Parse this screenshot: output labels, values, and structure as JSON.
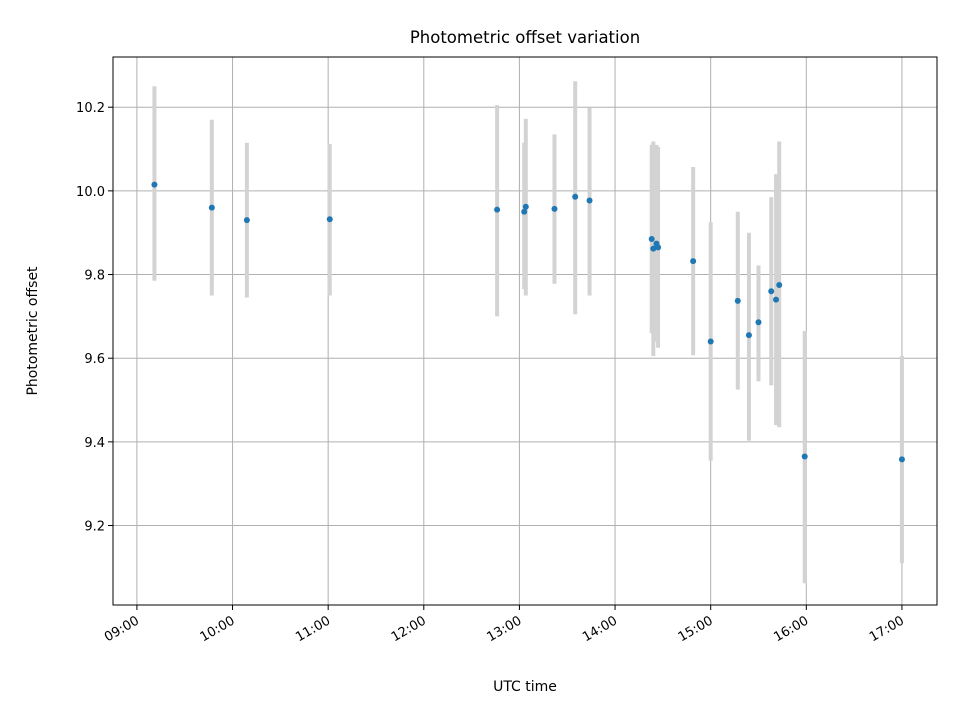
{
  "chart_data": {
    "type": "scatter",
    "title": "Photometric offset variation",
    "xlabel": "UTC time",
    "ylabel": "Photometric offset",
    "grid": true,
    "legend": "none",
    "xlim": [
      "08:45",
      "17:22"
    ],
    "ylim": [
      9.01,
      10.32
    ],
    "x_ticks": [
      "09:00",
      "10:00",
      "11:00",
      "12:00",
      "13:00",
      "14:00",
      "15:00",
      "16:00",
      "17:00"
    ],
    "y_ticks": [
      "9.2",
      "9.4",
      "9.6",
      "9.8",
      "10.0",
      "10.2"
    ],
    "series": [
      {
        "marker_color": "#1f77b4",
        "errorbar_color": "#d3d3d3",
        "points": [
          {
            "x": "09:11",
            "y": 10.015,
            "y_low": 9.785,
            "y_high": 10.25
          },
          {
            "x": "09:47",
            "y": 9.96,
            "y_low": 9.75,
            "y_high": 10.17
          },
          {
            "x": "10:09",
            "y": 9.93,
            "y_low": 9.745,
            "y_high": 10.115
          },
          {
            "x": "11:01",
            "y": 9.932,
            "y_low": 9.75,
            "y_high": 10.112
          },
          {
            "x": "12:46",
            "y": 9.955,
            "y_low": 9.7,
            "y_high": 10.205
          },
          {
            "x": "13:03",
            "y": 9.95,
            "y_low": 9.765,
            "y_high": 10.115
          },
          {
            "x": "13:04",
            "y": 9.962,
            "y_low": 9.75,
            "y_high": 10.172
          },
          {
            "x": "13:22",
            "y": 9.957,
            "y_low": 9.778,
            "y_high": 10.135
          },
          {
            "x": "13:35",
            "y": 9.986,
            "y_low": 9.705,
            "y_high": 10.262
          },
          {
            "x": "13:44",
            "y": 9.977,
            "y_low": 9.75,
            "y_high": 10.198
          },
          {
            "x": "14:23",
            "y": 9.885,
            "y_low": 9.66,
            "y_high": 10.11
          },
          {
            "x": "14:24",
            "y": 9.862,
            "y_low": 9.605,
            "y_high": 10.118
          },
          {
            "x": "14:26",
            "y": 9.874,
            "y_low": 9.64,
            "y_high": 10.11
          },
          {
            "x": "14:27",
            "y": 9.865,
            "y_low": 9.625,
            "y_high": 10.105
          },
          {
            "x": "14:49",
            "y": 9.832,
            "y_low": 9.607,
            "y_high": 10.057
          },
          {
            "x": "15:00",
            "y": 9.64,
            "y_low": 9.355,
            "y_high": 9.925
          },
          {
            "x": "15:17",
            "y": 9.737,
            "y_low": 9.525,
            "y_high": 9.95
          },
          {
            "x": "15:24",
            "y": 9.655,
            "y_low": 9.403,
            "y_high": 9.9
          },
          {
            "x": "15:30",
            "y": 9.686,
            "y_low": 9.545,
            "y_high": 9.822
          },
          {
            "x": "15:38",
            "y": 9.76,
            "y_low": 9.535,
            "y_high": 9.985
          },
          {
            "x": "15:41",
            "y": 9.74,
            "y_low": 9.44,
            "y_high": 10.04
          },
          {
            "x": "15:43",
            "y": 9.775,
            "y_low": 9.435,
            "y_high": 10.118
          },
          {
            "x": "15:59",
            "y": 9.365,
            "y_low": 9.062,
            "y_high": 9.665
          },
          {
            "x": "17:00",
            "y": 9.358,
            "y_low": 9.11,
            "y_high": 9.605
          }
        ]
      }
    ]
  }
}
